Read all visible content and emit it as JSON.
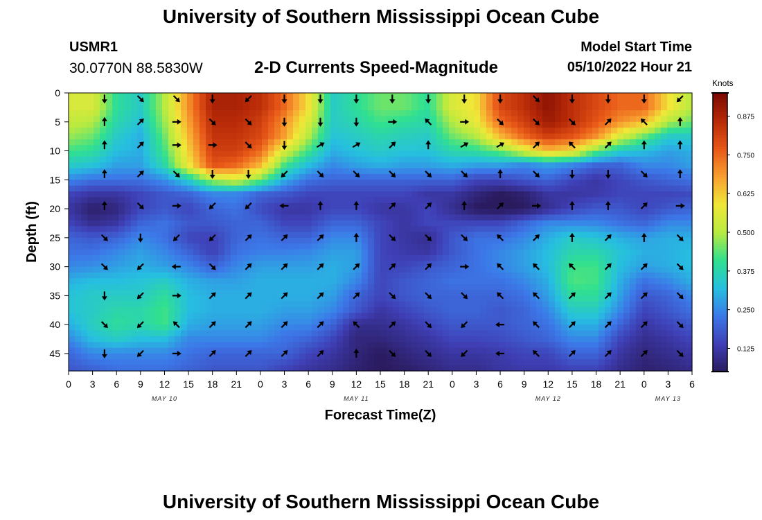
{
  "header": {
    "title_top": "University of Southern Mississippi Ocean Cube",
    "station_id": "USMR1",
    "station_coords": "30.0770N  88.5830W",
    "chart_title": "2-D Currents Speed-Magnitude",
    "model_label": "Model Start Time",
    "model_time": "05/10/2022 Hour 21"
  },
  "footer": {
    "title_bottom": "University of Southern Mississippi Ocean Cube"
  },
  "chart_data": {
    "type": "heatmap",
    "title": "2-D Currents Speed-Magnitude",
    "xlabel": "Forecast Time(Z)",
    "ylabel": "Depth (ft)",
    "x_unit": "hours since 2022-05-10 00Z",
    "xlim": [
      0,
      78
    ],
    "ylim": [
      0,
      48
    ],
    "y_inverted": true,
    "x_ticks": [
      0,
      3,
      6,
      9,
      12,
      15,
      18,
      21,
      24,
      27,
      30,
      33,
      36,
      39,
      42,
      45,
      48,
      51,
      54,
      57,
      60,
      63,
      66,
      69,
      72,
      75,
      78
    ],
    "x_tick_labels": [
      "0",
      "3",
      "6",
      "9",
      "12",
      "15",
      "18",
      "21",
      "0",
      "3",
      "6",
      "9",
      "12",
      "15",
      "18",
      "21",
      "0",
      "3",
      "6",
      "9",
      "12",
      "15",
      "18",
      "21",
      "0",
      "3",
      "6"
    ],
    "date_labels": [
      {
        "label": "MAY 10",
        "x": 12
      },
      {
        "label": "MAY 11",
        "x": 36
      },
      {
        "label": "MAY 12",
        "x": 60
      },
      {
        "label": "MAY 13",
        "x": 75
      }
    ],
    "y_ticks": [
      0,
      5,
      10,
      15,
      20,
      25,
      30,
      35,
      40,
      45
    ],
    "y_tick_labels": [
      "0",
      "5",
      "10",
      "15",
      "20",
      "25",
      "30",
      "35",
      "40",
      "45"
    ],
    "colorbar": {
      "unit_label": "Knots",
      "range": [
        0.05,
        0.95
      ],
      "ticks": [
        0.125,
        0.25,
        0.375,
        0.5,
        0.625,
        0.75,
        0.875
      ],
      "tick_labels": [
        "0.125",
        "0.250",
        "0.375",
        "0.500",
        "0.625",
        "0.750",
        "0.875"
      ],
      "colormap": [
        "#2a1a5e",
        "#3f3fb5",
        "#3c78e8",
        "#26bfe0",
        "#30e090",
        "#b8ea40",
        "#f0e838",
        "#f8a030",
        "#e85818",
        "#b82a08",
        "#7a0a02"
      ]
    },
    "speed_field": {
      "note": "Estimated current speed (knots) sampled every 3 hours (columns) and every 2.5 ft depth (rows, 0-47.5 ft)",
      "x_hours": [
        0,
        3,
        6,
        9,
        12,
        15,
        18,
        21,
        24,
        27,
        30,
        33,
        36,
        39,
        42,
        45,
        48,
        51,
        54,
        57,
        60,
        63,
        66,
        69,
        72,
        75,
        78
      ],
      "depths_ft": [
        0,
        2.5,
        5,
        7.5,
        10,
        12.5,
        15,
        17.5,
        20,
        22.5,
        25,
        27.5,
        30,
        32.5,
        35,
        37.5,
        40,
        42.5,
        45,
        47.5
      ],
      "values": [
        [
          0.55,
          0.55,
          0.4,
          0.35,
          0.5,
          0.7,
          0.88,
          0.88,
          0.85,
          0.75,
          0.6,
          0.35,
          0.4,
          0.45,
          0.45,
          0.4,
          0.55,
          0.6,
          0.8,
          0.85,
          0.92,
          0.85,
          0.8,
          0.75,
          0.75,
          0.6,
          0.5
        ],
        [
          0.55,
          0.55,
          0.4,
          0.35,
          0.5,
          0.7,
          0.88,
          0.88,
          0.85,
          0.75,
          0.6,
          0.35,
          0.4,
          0.45,
          0.45,
          0.4,
          0.55,
          0.6,
          0.8,
          0.85,
          0.92,
          0.85,
          0.8,
          0.75,
          0.75,
          0.6,
          0.5
        ],
        [
          0.52,
          0.5,
          0.38,
          0.33,
          0.48,
          0.68,
          0.86,
          0.86,
          0.82,
          0.7,
          0.55,
          0.35,
          0.38,
          0.42,
          0.4,
          0.38,
          0.5,
          0.58,
          0.75,
          0.82,
          0.9,
          0.85,
          0.78,
          0.7,
          0.65,
          0.5,
          0.45
        ],
        [
          0.48,
          0.45,
          0.35,
          0.3,
          0.45,
          0.65,
          0.84,
          0.84,
          0.8,
          0.68,
          0.5,
          0.33,
          0.35,
          0.38,
          0.36,
          0.35,
          0.45,
          0.5,
          0.65,
          0.75,
          0.82,
          0.78,
          0.7,
          0.55,
          0.45,
          0.35,
          0.35
        ],
        [
          0.42,
          0.4,
          0.32,
          0.3,
          0.42,
          0.62,
          0.82,
          0.82,
          0.75,
          0.55,
          0.42,
          0.3,
          0.33,
          0.35,
          0.33,
          0.33,
          0.38,
          0.4,
          0.45,
          0.55,
          0.65,
          0.6,
          0.45,
          0.35,
          0.32,
          0.28,
          0.3
        ],
        [
          0.35,
          0.33,
          0.28,
          0.28,
          0.38,
          0.58,
          0.78,
          0.75,
          0.65,
          0.42,
          0.32,
          0.25,
          0.28,
          0.3,
          0.28,
          0.28,
          0.3,
          0.28,
          0.28,
          0.25,
          0.28,
          0.25,
          0.2,
          0.2,
          0.25,
          0.25,
          0.28
        ],
        [
          0.25,
          0.22,
          0.22,
          0.22,
          0.26,
          0.35,
          0.5,
          0.55,
          0.45,
          0.3,
          0.22,
          0.2,
          0.2,
          0.2,
          0.2,
          0.2,
          0.2,
          0.15,
          0.15,
          0.18,
          0.2,
          0.15,
          0.12,
          0.15,
          0.18,
          0.2,
          0.22
        ],
        [
          0.15,
          0.12,
          0.12,
          0.15,
          0.18,
          0.2,
          0.25,
          0.25,
          0.2,
          0.18,
          0.15,
          0.15,
          0.15,
          0.15,
          0.15,
          0.12,
          0.12,
          0.08,
          0.05,
          0.07,
          0.12,
          0.12,
          0.13,
          0.15,
          0.15,
          0.15,
          0.16
        ],
        [
          0.12,
          0.06,
          0.08,
          0.15,
          0.18,
          0.15,
          0.2,
          0.22,
          0.16,
          0.12,
          0.12,
          0.15,
          0.15,
          0.12,
          0.12,
          0.15,
          0.1,
          0.05,
          0.04,
          0.05,
          0.1,
          0.15,
          0.18,
          0.18,
          0.15,
          0.18,
          0.2
        ],
        [
          0.15,
          0.1,
          0.12,
          0.2,
          0.22,
          0.18,
          0.18,
          0.2,
          0.2,
          0.15,
          0.15,
          0.2,
          0.2,
          0.15,
          0.12,
          0.15,
          0.15,
          0.15,
          0.15,
          0.2,
          0.25,
          0.25,
          0.25,
          0.22,
          0.2,
          0.25,
          0.25
        ],
        [
          0.2,
          0.18,
          0.2,
          0.25,
          0.22,
          0.15,
          0.14,
          0.2,
          0.22,
          0.2,
          0.2,
          0.25,
          0.25,
          0.15,
          0.12,
          0.1,
          0.18,
          0.22,
          0.22,
          0.25,
          0.3,
          0.35,
          0.33,
          0.3,
          0.28,
          0.3,
          0.3
        ],
        [
          0.22,
          0.22,
          0.25,
          0.28,
          0.25,
          0.2,
          0.14,
          0.22,
          0.24,
          0.24,
          0.25,
          0.28,
          0.28,
          0.15,
          0.13,
          0.12,
          0.18,
          0.22,
          0.25,
          0.28,
          0.32,
          0.38,
          0.38,
          0.33,
          0.3,
          0.3,
          0.32
        ],
        [
          0.25,
          0.26,
          0.28,
          0.3,
          0.28,
          0.25,
          0.2,
          0.25,
          0.28,
          0.28,
          0.28,
          0.3,
          0.28,
          0.15,
          0.15,
          0.18,
          0.2,
          0.22,
          0.25,
          0.28,
          0.32,
          0.42,
          0.42,
          0.32,
          0.28,
          0.3,
          0.32
        ],
        [
          0.3,
          0.32,
          0.32,
          0.33,
          0.35,
          0.3,
          0.28,
          0.28,
          0.3,
          0.3,
          0.3,
          0.3,
          0.25,
          0.15,
          0.18,
          0.2,
          0.22,
          0.22,
          0.22,
          0.25,
          0.3,
          0.43,
          0.42,
          0.3,
          0.22,
          0.25,
          0.3
        ],
        [
          0.33,
          0.35,
          0.35,
          0.35,
          0.4,
          0.32,
          0.3,
          0.3,
          0.3,
          0.3,
          0.3,
          0.28,
          0.2,
          0.15,
          0.18,
          0.2,
          0.2,
          0.2,
          0.2,
          0.22,
          0.28,
          0.4,
          0.4,
          0.28,
          0.18,
          0.2,
          0.25
        ],
        [
          0.33,
          0.35,
          0.38,
          0.38,
          0.42,
          0.32,
          0.3,
          0.3,
          0.3,
          0.28,
          0.28,
          0.25,
          0.18,
          0.12,
          0.15,
          0.18,
          0.2,
          0.2,
          0.18,
          0.2,
          0.25,
          0.35,
          0.35,
          0.25,
          0.15,
          0.18,
          0.22
        ],
        [
          0.3,
          0.36,
          0.4,
          0.38,
          0.42,
          0.3,
          0.28,
          0.28,
          0.28,
          0.25,
          0.25,
          0.2,
          0.1,
          0.1,
          0.12,
          0.15,
          0.18,
          0.18,
          0.18,
          0.2,
          0.22,
          0.3,
          0.3,
          0.2,
          0.12,
          0.15,
          0.18
        ],
        [
          0.25,
          0.32,
          0.35,
          0.32,
          0.32,
          0.25,
          0.25,
          0.25,
          0.25,
          0.22,
          0.2,
          0.15,
          0.08,
          0.08,
          0.1,
          0.12,
          0.15,
          0.15,
          0.16,
          0.18,
          0.2,
          0.25,
          0.25,
          0.15,
          0.1,
          0.12,
          0.15
        ],
        [
          0.2,
          0.25,
          0.25,
          0.25,
          0.25,
          0.22,
          0.2,
          0.2,
          0.2,
          0.2,
          0.15,
          0.12,
          0.08,
          0.05,
          0.08,
          0.1,
          0.12,
          0.12,
          0.13,
          0.15,
          0.15,
          0.2,
          0.2,
          0.12,
          0.08,
          0.1,
          0.12
        ],
        [
          0.18,
          0.2,
          0.22,
          0.22,
          0.22,
          0.2,
          0.18,
          0.18,
          0.18,
          0.15,
          0.12,
          0.1,
          0.07,
          0.05,
          0.06,
          0.08,
          0.1,
          0.1,
          0.12,
          0.13,
          0.13,
          0.15,
          0.15,
          0.1,
          0.07,
          0.08,
          0.1
        ]
      ]
    },
    "vectors": {
      "note": "Current direction arrows (degrees, 0 = up/north, clockwise) at every 4.5 hours and 5 ft depth",
      "x_hours": [
        4.5,
        9,
        13.5,
        18,
        22.5,
        27,
        31.5,
        36,
        40.5,
        45,
        49.5,
        54,
        58.5,
        63,
        67.5,
        72,
        76.5
      ],
      "depths_ft": [
        1,
        5,
        9,
        14,
        19.5,
        25,
        30,
        35,
        40,
        45
      ],
      "angles": [
        [
          180,
          135,
          135,
          180,
          225,
          180,
          180,
          180,
          180,
          180,
          180,
          180,
          135,
          180,
          180,
          180,
          225
        ],
        [
          0,
          45,
          90,
          135,
          135,
          180,
          180,
          180,
          90,
          315,
          90,
          135,
          135,
          135,
          45,
          315,
          0
        ],
        [
          0,
          45,
          90,
          90,
          135,
          180,
          60,
          60,
          45,
          0,
          60,
          60,
          45,
          315,
          45,
          0,
          0
        ],
        [
          0,
          45,
          135,
          180,
          180,
          225,
          135,
          135,
          135,
          135,
          135,
          0,
          135,
          180,
          180,
          135,
          0
        ],
        [
          0,
          135,
          90,
          225,
          225,
          270,
          0,
          0,
          45,
          45,
          0,
          45,
          90,
          0,
          0,
          45,
          90
        ],
        [
          135,
          180,
          225,
          225,
          45,
          45,
          45,
          0,
          135,
          135,
          135,
          315,
          45,
          0,
          45,
          0,
          135
        ],
        [
          135,
          225,
          270,
          135,
          45,
          45,
          45,
          45,
          45,
          45,
          90,
          315,
          315,
          315,
          45,
          45,
          135
        ],
        [
          180,
          225,
          90,
          45,
          45,
          45,
          45,
          45,
          135,
          135,
          135,
          315,
          315,
          45,
          45,
          45,
          135
        ],
        [
          135,
          225,
          315,
          45,
          45,
          45,
          45,
          315,
          45,
          135,
          225,
          270,
          315,
          45,
          45,
          45,
          135
        ],
        [
          180,
          225,
          90,
          45,
          45,
          45,
          45,
          0,
          135,
          135,
          225,
          270,
          315,
          45,
          45,
          45,
          135
        ]
      ]
    }
  }
}
